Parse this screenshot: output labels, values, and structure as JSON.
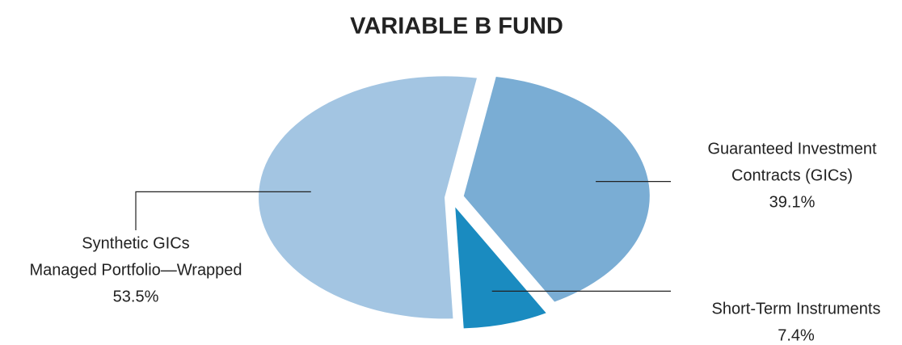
{
  "chart_data": {
    "type": "pie",
    "title": "VARIABLE B FUND",
    "categories": [
      [
        "Guaranteed Investment",
        "Contracts (GICs)"
      ],
      [
        "Short-Term Instruments"
      ],
      [
        "Synthetic GICs",
        "Managed Portfolio—Wrapped"
      ]
    ],
    "values": [
      39.1,
      7.4,
      53.5
    ],
    "value_labels": [
      "39.1%",
      "7.4%",
      "53.5%"
    ],
    "colors": [
      "#7aadd4",
      "#1a8bc0",
      "#a3c5e2"
    ]
  }
}
